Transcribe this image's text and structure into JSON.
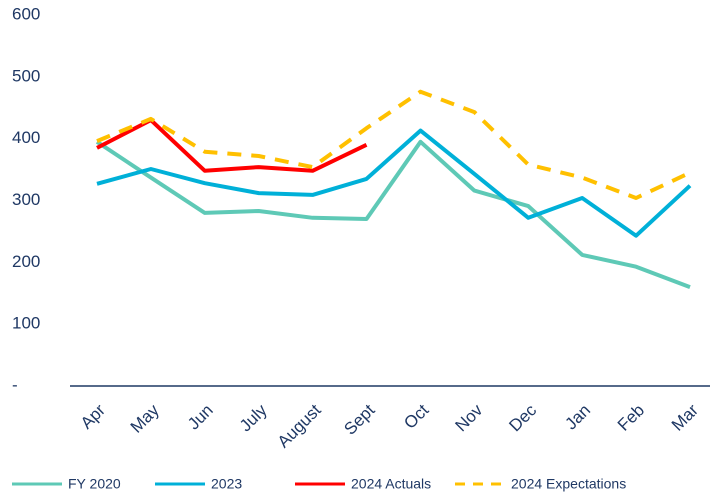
{
  "chart_data": {
    "type": "line",
    "categories": [
      "Apr",
      "May",
      "Jun",
      "July",
      "August",
      "Sept",
      "Oct",
      "Nov",
      "Dec",
      "Jan",
      "Feb",
      "Mar"
    ],
    "series": [
      {
        "name": "FY 2020",
        "color": "#5ec9b6",
        "values": [
          395,
          337,
          280,
          283,
          272,
          270,
          395,
          316,
          291,
          212,
          193,
          160
        ]
      },
      {
        "name": "2023",
        "color": "#00b0d8",
        "values": [
          327,
          351,
          328,
          312,
          309,
          335,
          413,
          343,
          272,
          304,
          243,
          324
        ]
      },
      {
        "name": "2024 Actuals",
        "color": "#ff0000",
        "values": [
          385,
          430,
          348,
          354,
          348,
          390,
          null,
          null,
          null,
          null,
          null,
          null
        ]
      },
      {
        "name": "2024 Expectations",
        "color": "#ffc000",
        "dashed": true,
        "values": [
          396,
          432,
          379,
          372,
          354,
          417,
          476,
          443,
          358,
          337,
          304,
          345
        ]
      }
    ],
    "ylim": [
      0,
      600
    ],
    "yticks": [
      {
        "value": 0,
        "label": "-"
      },
      100,
      200,
      300,
      400,
      500,
      600
    ],
    "grid": false,
    "legend": "bottom"
  }
}
